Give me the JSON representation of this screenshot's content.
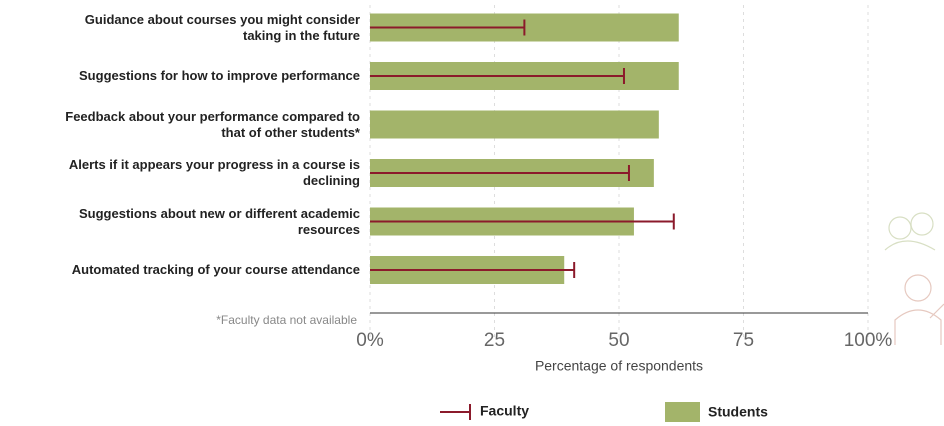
{
  "chart_data": {
    "type": "bar",
    "categories": [
      "Guidance about courses you might consider taking in the future",
      "Suggestions for how to improve performance",
      "Feedback about your performance compared to that of other students*",
      "Alerts if it appears your progress in a course is declining",
      "Suggestions about new or different academic resources",
      "Automated tracking of your course attendance"
    ],
    "series": [
      {
        "name": "Students",
        "color": "#a3b46a",
        "values": [
          62,
          62,
          58,
          57,
          53,
          39
        ]
      },
      {
        "name": "Faculty",
        "color": "#8b1a2b",
        "values": [
          31,
          51,
          null,
          52,
          61,
          41
        ]
      }
    ],
    "xlim": [
      0,
      100
    ],
    "xticks": [
      {
        "value": 0,
        "label": "0%"
      },
      25,
      50,
      75,
      {
        "value": 100,
        "label": "100%"
      }
    ],
    "xlabel": "Percentage of respondents",
    "note": "*Faculty data not available",
    "grid": true,
    "legend": "bottom"
  }
}
